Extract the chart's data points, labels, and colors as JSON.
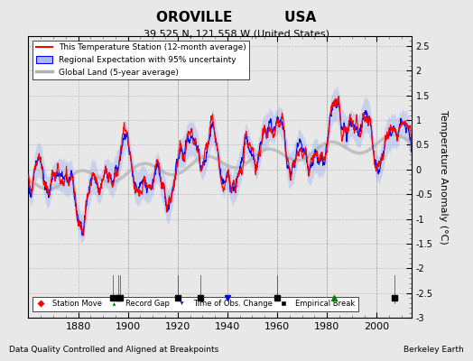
{
  "title1": "OROVILLE           USA",
  "title2": "39.525 N, 121.558 W (United States)",
  "ylabel": "Temperature Anomaly (°C)",
  "xlabel_bottom": "Data Quality Controlled and Aligned at Breakpoints",
  "xlabel_right": "Berkeley Earth",
  "year_start": 1860,
  "year_end": 2014,
  "ylim": [
    -3.0,
    2.7
  ],
  "yticks": [
    -3,
    -2.5,
    -2,
    -1.5,
    -1,
    -0.5,
    0,
    0.5,
    1,
    1.5,
    2,
    2.5
  ],
  "background_color": "#e8e8e8",
  "plot_background": "#e8e8e8",
  "legend_entries": [
    "This Temperature Station (12-month average)",
    "Regional Expectation with 95% uncertainty",
    "Global Land (5-year average)"
  ],
  "event_markers": {
    "empirical_breaks": [
      1894,
      1896,
      1897,
      1920,
      1929,
      1960,
      2007
    ],
    "record_gap": [
      1983
    ],
    "time_of_obs": [
      1940
    ],
    "station_move": []
  }
}
